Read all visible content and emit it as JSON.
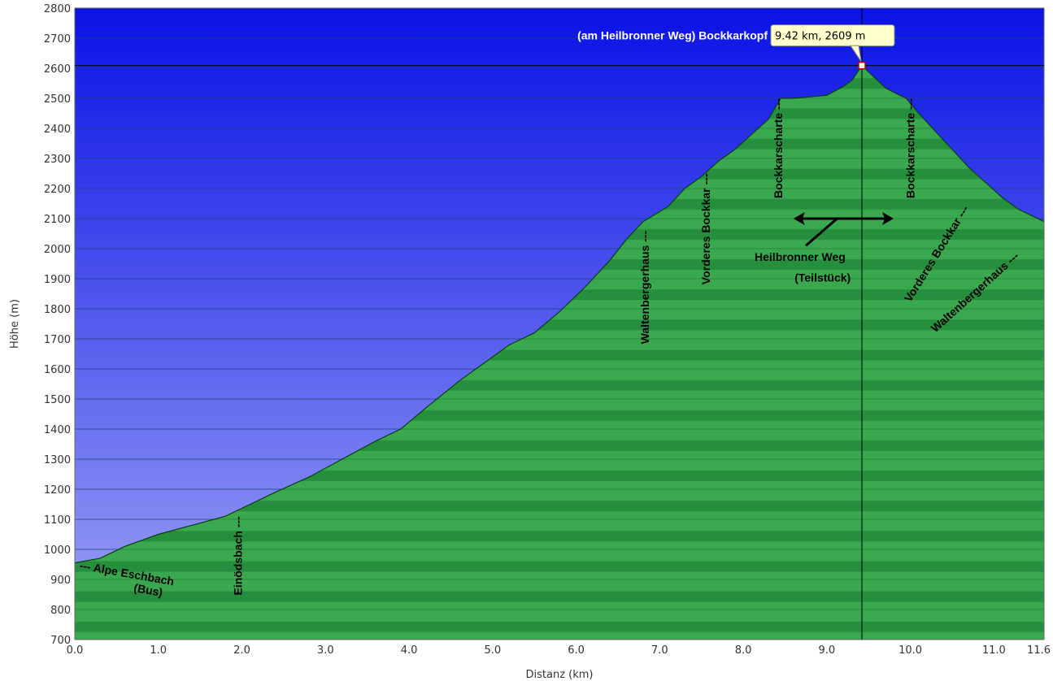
{
  "chart_data": {
    "type": "area",
    "xlabel": "Distanz  (km)",
    "ylabel": "Höhe (m)",
    "xlim": [
      0,
      11.6
    ],
    "ylim": [
      700,
      2800
    ],
    "xticks": [
      "0.0",
      "1.0",
      "2.0",
      "3.0",
      "4.0",
      "5.0",
      "6.0",
      "7.0",
      "8.0",
      "9.0",
      "10.0",
      "11.0",
      "11.6"
    ],
    "xtick_values": [
      0,
      1,
      2,
      3,
      4,
      5,
      6,
      7,
      8,
      9,
      10,
      11,
      11.6
    ],
    "yticks": [
      700,
      800,
      900,
      1000,
      1100,
      1200,
      1300,
      1400,
      1500,
      1600,
      1700,
      1800,
      1900,
      2000,
      2100,
      2200,
      2300,
      2400,
      2500,
      2600,
      2700,
      2800
    ],
    "grid": true,
    "colors": {
      "sky_top": "#0a12e6",
      "sky_bottom": "#9ea4f5",
      "fill_light": "#3aa84e",
      "fill_dark": "#157a30",
      "line": "#0b3d12"
    },
    "x": [
      0.0,
      0.3,
      0.6,
      1.0,
      1.4,
      1.8,
      2.1,
      2.4,
      2.8,
      3.2,
      3.6,
      3.9,
      4.2,
      4.6,
      4.9,
      5.2,
      5.5,
      5.8,
      6.1,
      6.4,
      6.6,
      6.8,
      7.1,
      7.3,
      7.5,
      7.7,
      7.9,
      8.1,
      8.3,
      8.45,
      8.6,
      8.8,
      9.0,
      9.2,
      9.3,
      9.42,
      9.55,
      9.7,
      9.8,
      9.95,
      10.1,
      10.3,
      10.5,
      10.7,
      10.9,
      11.1,
      11.3,
      11.6
    ],
    "y": [
      955,
      970,
      1010,
      1050,
      1080,
      1110,
      1150,
      1190,
      1240,
      1300,
      1360,
      1400,
      1470,
      1560,
      1620,
      1680,
      1720,
      1790,
      1870,
      1960,
      2030,
      2090,
      2140,
      2200,
      2240,
      2290,
      2330,
      2380,
      2430,
      2500,
      2500,
      2505,
      2510,
      2540,
      2560,
      2609,
      2575,
      2535,
      2520,
      2500,
      2450,
      2390,
      2330,
      2270,
      2220,
      2170,
      2130,
      2090
    ],
    "highlight": {
      "x": 9.42,
      "y": 2609,
      "label": "9.42 km, 2609 m",
      "name": "(am Heilbronner Weg) Bockkarkopf"
    },
    "annotations": [
      {
        "text": "--- Alpe Eschbach",
        "x": 0.05,
        "y": 935,
        "angle": 10
      },
      {
        "text": "(Bus)",
        "x": 0.7,
        "y": 860,
        "angle": 10
      },
      {
        "text": "Einödsbach ---",
        "x": 1.95,
        "y": 1110,
        "angle": -90
      },
      {
        "text": "Waltenbergerhaus ---",
        "x": 6.82,
        "y": 2060,
        "angle": -90
      },
      {
        "text": "Vorderes Bockkar ---",
        "x": 7.55,
        "y": 2250,
        "angle": -90
      },
      {
        "text": "Bockkarscharte ---",
        "x": 8.42,
        "y": 2500,
        "angle": -90
      },
      {
        "text": "Bockkarscharte ---",
        "x": 10.0,
        "y": 2500,
        "angle": -90
      },
      {
        "text": "Vorderes Bockkar ---",
        "x": 10.0,
        "y": 1820,
        "angle": -58
      },
      {
        "text": "Waltenbergerhaus ---",
        "x": 10.3,
        "y": 1720,
        "angle": -42
      },
      {
        "text": "Heilbronner Weg",
        "x": 8.68,
        "y": 1960,
        "angle": 0
      },
      {
        "text": "(Teilstück)",
        "x": 8.95,
        "y": 1890,
        "angle": 0
      }
    ],
    "arrow": {
      "from_x": 8.6,
      "to_x": 9.8,
      "y": 2100,
      "pointer_x": 8.75,
      "pointer_y": 2010
    }
  }
}
